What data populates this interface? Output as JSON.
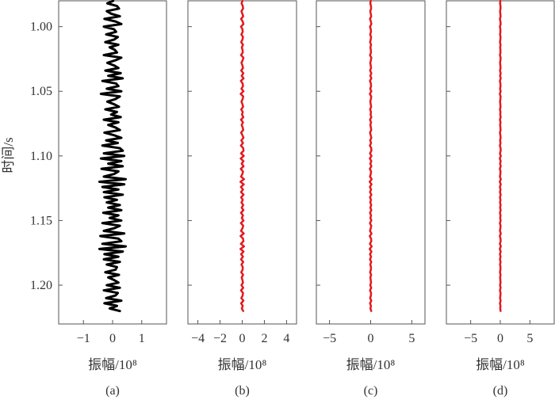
{
  "chart_data": [
    {
      "type": "line",
      "panel_label": "(a)",
      "xlabel": "振幅/10⁸",
      "ylabel": "时间/s",
      "x_ticks": [
        -1,
        0,
        1
      ],
      "x_tick_labels": [
        "−1",
        "0",
        "1"
      ],
      "xlim": [
        -1.85,
        1.85
      ],
      "ylim": [
        1.23,
        0.98
      ],
      "y_ticks": [
        1.0,
        1.05,
        1.1,
        1.15,
        1.2
      ],
      "y_tick_labels": [
        "1.00",
        "1.05",
        "1.10",
        "1.15",
        "1.20"
      ],
      "y_inverted": true,
      "series": [
        {
          "color": "#000000",
          "y_start": 0.98,
          "y_step": 0.002,
          "x": [
            0.02,
            -0.18,
            0.15,
            0.22,
            -0.2,
            -0.05,
            0.25,
            -0.28,
            0.1,
            0.3,
            -0.3,
            0.05,
            0.12,
            -0.22,
            0.18,
            0.05,
            -0.25,
            0.2,
            -0.1,
            0.08,
            0.15,
            -0.3,
            0.3,
            0.1,
            -0.18,
            0.05,
            0.2,
            -0.25,
            0.28,
            -0.15,
            0.35,
            -0.35,
            0.12,
            0.2,
            -0.2,
            0.3,
            -0.4,
            0.25,
            0.1,
            -0.18,
            0.05,
            0.22,
            -0.25,
            0.15,
            -0.05,
            0.28,
            -0.3,
            0.2,
            -0.15,
            0.1,
            0.25,
            -0.28,
            0.05,
            0.3,
            -0.22,
            0.18,
            -0.35,
            0.25,
            0.35,
            -0.3,
            0.4,
            -0.4,
            0.3,
            -0.15,
            0.35,
            -0.38,
            0.2,
            0.05,
            -0.3,
            0.45,
            -0.45,
            0.4,
            -0.35,
            0.2,
            -0.3,
            0.35,
            -0.28,
            0.15,
            -0.2,
            0.25,
            -0.15,
            0.3,
            -0.32,
            0.2,
            -0.1,
            0.3,
            -0.35,
            0.25,
            0.05,
            -0.3,
            0.4,
            -0.42,
            0.2,
            0.3,
            -0.35,
            0.45,
            -0.45,
            0.35,
            -0.28,
            0.2,
            -0.3,
            0.25,
            -0.2,
            0.15,
            0.1,
            -0.25,
            0.22,
            -0.15,
            0.05,
            0.2,
            -0.2,
            0.25,
            -0.3,
            0.18,
            0.1,
            -0.22,
            0.3,
            -0.28,
            0.15,
            -0.1,
            0.25
          ]
        }
      ]
    },
    {
      "type": "line",
      "panel_label": "(b)",
      "xlabel": "振幅/10⁸",
      "x_ticks": [
        -4,
        -2,
        0,
        2,
        4
      ],
      "x_tick_labels": [
        "−4",
        "−2",
        "0",
        "2",
        "4"
      ],
      "xlim": [
        -4.9,
        4.9
      ],
      "ylim": [
        1.23,
        0.98
      ],
      "y_inverted": true,
      "series": [
        {
          "color": "#e31a1c",
          "y_start": 0.98,
          "y_step": 0.002,
          "x": [
            0.02,
            -0.06,
            0.05,
            0.08,
            -0.07,
            0.01,
            0.09,
            -0.1,
            0.04,
            0.11,
            -0.11,
            0.02,
            0.05,
            -0.08,
            0.07,
            0.02,
            -0.09,
            0.07,
            -0.04,
            0.03,
            0.05,
            -0.11,
            0.11,
            0.04,
            -0.07,
            0.02,
            0.07,
            -0.09,
            0.1,
            -0.05,
            0.12,
            -0.12,
            0.04,
            0.07,
            -0.07,
            0.11,
            -0.14,
            0.09,
            0.04,
            -0.07,
            0.02,
            0.08,
            -0.09,
            0.05,
            -0.02,
            0.1,
            -0.11,
            0.07,
            -0.05,
            0.04,
            0.09,
            -0.1,
            0.02,
            0.11,
            -0.08,
            0.07,
            -0.12,
            0.09,
            0.12,
            -0.11,
            0.14,
            -0.14,
            0.11,
            -0.05,
            0.12,
            -0.13,
            0.07,
            0.02,
            -0.11,
            0.16,
            -0.16,
            0.14,
            -0.12,
            0.07,
            -0.11,
            0.12,
            -0.1,
            0.05,
            -0.07,
            0.09,
            -0.05,
            0.11,
            -0.11,
            0.07,
            -0.04,
            0.11,
            -0.12,
            0.09,
            0.02,
            -0.11,
            0.14,
            -0.15,
            0.07,
            0.11,
            -0.12,
            0.16,
            -0.16,
            0.12,
            -0.1,
            0.07,
            -0.11,
            0.09,
            -0.07,
            0.05,
            0.04,
            -0.09,
            0.08,
            -0.05,
            0.02,
            0.07,
            -0.07,
            0.09,
            -0.11,
            0.07,
            0.04,
            -0.08,
            0.11,
            -0.1,
            0.05,
            -0.04,
            0.09
          ]
        }
      ]
    },
    {
      "type": "line",
      "panel_label": "(c)",
      "xlabel": "振幅/10⁸",
      "x_ticks": [
        -5,
        0,
        5
      ],
      "x_tick_labels": [
        "−5",
        "0",
        "5"
      ],
      "xlim": [
        -6.6,
        6.6
      ],
      "ylim": [
        1.23,
        0.98
      ],
      "y_inverted": true,
      "series": [
        {
          "color": "#e31a1c",
          "y_start": 0.98,
          "y_step": 0.002,
          "x": [
            0.01,
            -0.05,
            0.04,
            0.06,
            -0.05,
            0.01,
            0.07,
            -0.08,
            0.03,
            0.08,
            -0.08,
            0.01,
            0.04,
            -0.06,
            0.05,
            0.01,
            -0.07,
            0.05,
            -0.03,
            0.02,
            0.04,
            -0.08,
            0.08,
            0.03,
            -0.05,
            0.01,
            0.05,
            -0.07,
            0.08,
            -0.04,
            0.09,
            -0.09,
            0.03,
            0.05,
            -0.05,
            0.08,
            -0.1,
            0.07,
            0.03,
            -0.05,
            0.01,
            0.06,
            -0.07,
            0.04,
            -0.01,
            0.08,
            -0.08,
            0.05,
            -0.04,
            0.03,
            0.07,
            -0.08,
            0.01,
            0.08,
            -0.06,
            0.05,
            -0.09,
            0.07,
            0.09,
            -0.08,
            0.1,
            -0.1,
            0.08,
            -0.04,
            0.09,
            -0.1,
            0.05,
            0.01,
            -0.08,
            0.12,
            -0.12,
            0.1,
            -0.09,
            0.05,
            -0.08,
            0.09,
            -0.08,
            0.04,
            -0.05,
            0.07,
            -0.04,
            0.08,
            -0.08,
            0.05,
            -0.03,
            0.08,
            -0.09,
            0.07,
            0.01,
            -0.08,
            0.1,
            -0.11,
            0.05,
            0.08,
            -0.09,
            0.12,
            -0.12,
            0.09,
            -0.08,
            0.05,
            -0.08,
            0.07,
            -0.05,
            0.04,
            0.03,
            -0.07,
            0.06,
            -0.04,
            0.01,
            0.05,
            -0.05,
            0.07,
            -0.08,
            0.05,
            0.03,
            -0.06,
            0.08,
            -0.08,
            0.04,
            -0.03,
            0.07
          ]
        }
      ]
    },
    {
      "type": "line",
      "panel_label": "(d)",
      "xlabel": "振幅/10⁸",
      "x_ticks": [
        -5,
        0,
        5
      ],
      "x_tick_labels": [
        "−5",
        "0",
        "5"
      ],
      "xlim": [
        -9.1,
        9.1
      ],
      "ylim": [
        1.23,
        0.98
      ],
      "y_inverted": true,
      "series": [
        {
          "color": "#e31a1c",
          "y_start": 0.98,
          "y_step": 0.002,
          "x": [
            0.01,
            -0.04,
            0.03,
            0.04,
            -0.04,
            0.01,
            0.05,
            -0.06,
            0.02,
            0.06,
            -0.06,
            0.01,
            0.02,
            -0.04,
            0.04,
            0.01,
            -0.05,
            0.04,
            -0.02,
            0.02,
            0.03,
            -0.06,
            0.06,
            0.02,
            -0.04,
            0.01,
            0.04,
            -0.05,
            0.06,
            -0.03,
            0.07,
            -0.07,
            0.02,
            0.04,
            -0.04,
            0.06,
            -0.08,
            0.05,
            0.02,
            -0.04,
            0.01,
            0.04,
            -0.05,
            0.03,
            -0.01,
            0.06,
            -0.06,
            0.04,
            -0.03,
            0.02,
            0.05,
            -0.06,
            0.01,
            0.06,
            -0.04,
            0.04,
            -0.07,
            0.05,
            0.07,
            -0.06,
            0.08,
            -0.08,
            0.06,
            -0.03,
            0.07,
            -0.08,
            0.04,
            0.01,
            -0.06,
            0.09,
            -0.09,
            0.08,
            -0.07,
            0.04,
            -0.06,
            0.07,
            -0.06,
            0.03,
            -0.04,
            0.05,
            -0.03,
            0.06,
            -0.06,
            0.04,
            -0.02,
            0.06,
            -0.07,
            0.05,
            0.01,
            -0.06,
            0.08,
            -0.08,
            0.04,
            0.06,
            -0.07,
            0.09,
            -0.09,
            0.07,
            -0.06,
            0.04,
            -0.06,
            0.05,
            -0.04,
            0.03,
            0.02,
            -0.05,
            0.04,
            -0.03,
            0.01,
            0.04,
            -0.04,
            0.05,
            -0.06,
            0.04,
            0.02,
            -0.04,
            0.06,
            -0.06,
            0.03,
            -0.02,
            0.05
          ]
        }
      ]
    }
  ]
}
